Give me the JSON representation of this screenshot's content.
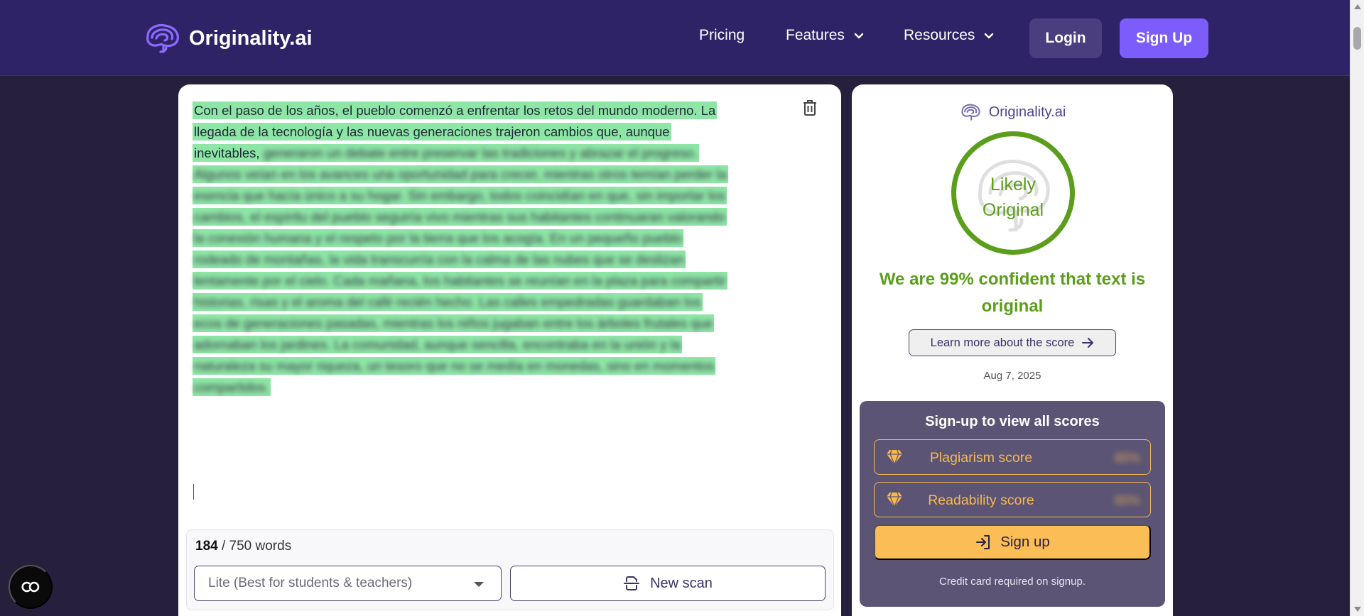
{
  "nav": {
    "brand": "Originality.ai",
    "pricing": "Pricing",
    "features": "Features",
    "resources": "Resources",
    "login": "Login",
    "signup": "Sign Up"
  },
  "editor": {
    "visible_lines": [
      "Con el paso de los años, el pueblo comenzó a enfrentar los retos del mundo moderno. La",
      "llegada de la tecnología y las nuevas generaciones trajeron cambios que, aunque",
      "inevitables,"
    ],
    "blurred_lines": [
      "generaron un debate entre preservar las tradiciones y abrazar el progreso.",
      "Algunos veían en los avances una oportunidad para crecer, mientras otros temían perder la",
      "esencia que hacía único a su hogar. Sin embargo, todos coincidían en que, sin importar los",
      "cambios, el espíritu del pueblo seguiría vivo mientras sus habitantes continuaran valorando",
      "la conexión humana y el respeto por la tierra que los acogía. En un pequeño pueblo",
      "rodeado de montañas, la vida transcurría con la calma de las nubes que se deslizan",
      "lentamente por el cielo. Cada mañana, los habitantes se reunían en la plaza para compartir",
      "historias, risas y el aroma del café recién hecho. Las calles empedradas guardaban los",
      "ecos de generaciones pasadas, mientras los niños jugaban entre los árboles frutales que",
      "adornaban los jardines. La comunidad, aunque sencilla, encontraba en la unión y la",
      "naturaleza su mayor riqueza, un tesoro que no se medía en monedas, sino en momentos",
      "compartidos."
    ],
    "word_count": "184",
    "word_limit": "/ 750 words",
    "model_selected": "Lite (Best for students & teachers)",
    "new_scan": "New scan"
  },
  "result": {
    "brand": "Originality.ai",
    "verdict_line1": "Likely",
    "verdict_line2": "Original",
    "confidence": "We are 99% confident that text is original",
    "learn_more": "Learn more about the score",
    "date": "Aug 7, 2025",
    "signup_box": {
      "title": "Sign-up to view all scores",
      "plagiarism_label": "Plagiarism score",
      "plagiarism_hidden": "80%",
      "readability_label": "Readability score",
      "readability_hidden": "80%",
      "cta": "Sign up",
      "note": "Credit card required on signup."
    }
  },
  "colors": {
    "navbar": "#2e2366",
    "page_bg": "#27203d",
    "accent": "#7c5cfb",
    "original_green": "#5b9e1c",
    "highlight": "#8ee6a6",
    "signup_box": "#5b5475",
    "gold": "#fbbd55"
  },
  "icons": {
    "brand": "brain-logo-icon",
    "features_chevron": "chevron-down-icon",
    "resources_chevron": "chevron-down-icon",
    "trash": "trash-icon",
    "new_scan": "scan-icon",
    "learn_more": "arrow-right-icon",
    "locked_score": "diamond-icon",
    "signup": "login-arrow-icon",
    "floating": "cookie-settings-icon"
  }
}
